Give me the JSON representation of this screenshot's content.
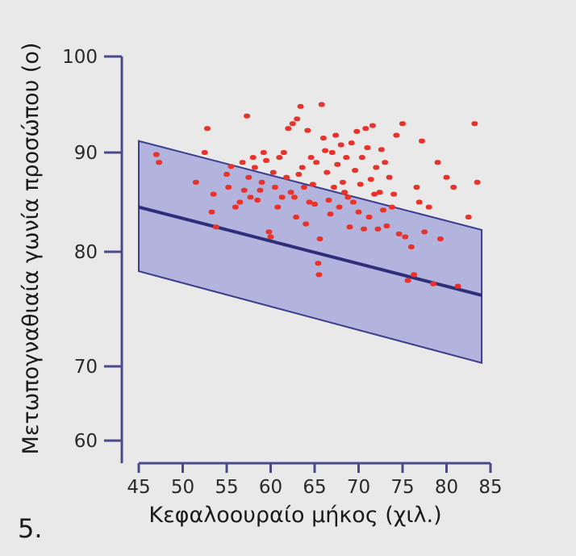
{
  "figure_label": "5.",
  "chart_data": {
    "type": "scatter",
    "xlabel": "Κεφαλοουραίο μήκος (χιλ.)",
    "ylabel": "Μετωπογναθιαία γωνία προσώπου (ο)",
    "xlim": [
      45,
      85
    ],
    "ylim": [
      60,
      100
    ],
    "x_ticks": [
      45,
      50,
      55,
      60,
      65,
      70,
      75,
      80,
      85
    ],
    "y_ticks": [
      60,
      70,
      80,
      90,
      100
    ],
    "grid": false,
    "colors": {
      "points": "#e8322a",
      "band_fill": "#a9aadc",
      "band_edge": "#3a3d8c",
      "mean_line": "#2d2f7a",
      "axis": "#4a4a8a"
    },
    "reference": {
      "x": [
        45,
        84
      ],
      "mean": [
        84.5,
        76.2
      ],
      "upper": [
        91.2,
        82.2
      ],
      "lower": [
        78.3,
        70.3
      ]
    },
    "points": [
      [
        47.0,
        89.8
      ],
      [
        47.3,
        89.0
      ],
      [
        51.5,
        87.0
      ],
      [
        52.5,
        90.0
      ],
      [
        52.8,
        92.5
      ],
      [
        53.3,
        84.0
      ],
      [
        53.5,
        85.8
      ],
      [
        53.8,
        82.5
      ],
      [
        55.0,
        87.8
      ],
      [
        55.2,
        86.5
      ],
      [
        55.5,
        88.6
      ],
      [
        56.0,
        84.5
      ],
      [
        56.5,
        85.0
      ],
      [
        56.8,
        89.0
      ],
      [
        57.0,
        86.2
      ],
      [
        57.3,
        93.8
      ],
      [
        57.5,
        87.5
      ],
      [
        57.7,
        85.5
      ],
      [
        58.0,
        89.5
      ],
      [
        58.2,
        88.5
      ],
      [
        58.5,
        85.2
      ],
      [
        58.8,
        86.2
      ],
      [
        59.0,
        87.0
      ],
      [
        59.2,
        90.0
      ],
      [
        59.5,
        89.2
      ],
      [
        59.8,
        82.0
      ],
      [
        60.0,
        81.5
      ],
      [
        60.3,
        88.0
      ],
      [
        60.5,
        86.5
      ],
      [
        60.8,
        84.5
      ],
      [
        61.0,
        89.5
      ],
      [
        61.3,
        85.5
      ],
      [
        61.5,
        90.0
      ],
      [
        61.8,
        87.5
      ],
      [
        62.0,
        92.5
      ],
      [
        62.3,
        86.0
      ],
      [
        62.5,
        93.0
      ],
      [
        62.7,
        85.5
      ],
      [
        62.9,
        83.5
      ],
      [
        63.0,
        93.5
      ],
      [
        63.2,
        87.8
      ],
      [
        63.4,
        94.8
      ],
      [
        63.6,
        88.5
      ],
      [
        63.8,
        86.5
      ],
      [
        64.0,
        82.8
      ],
      [
        64.2,
        92.3
      ],
      [
        64.4,
        85.0
      ],
      [
        64.6,
        89.5
      ],
      [
        64.8,
        86.8
      ],
      [
        65.0,
        84.8
      ],
      [
        65.2,
        89.0
      ],
      [
        65.4,
        79.0
      ],
      [
        65.5,
        78.0
      ],
      [
        65.6,
        81.3
      ],
      [
        65.8,
        95.0
      ],
      [
        66.0,
        91.5
      ],
      [
        66.2,
        90.2
      ],
      [
        66.4,
        88.0
      ],
      [
        66.6,
        85.2
      ],
      [
        66.8,
        83.8
      ],
      [
        67.0,
        90.0
      ],
      [
        67.2,
        86.5
      ],
      [
        67.4,
        91.8
      ],
      [
        67.6,
        88.8
      ],
      [
        67.8,
        84.5
      ],
      [
        68.0,
        90.8
      ],
      [
        68.2,
        87.0
      ],
      [
        68.4,
        86.0
      ],
      [
        68.6,
        89.5
      ],
      [
        68.8,
        85.5
      ],
      [
        69.0,
        82.5
      ],
      [
        69.2,
        91.0
      ],
      [
        69.4,
        85.0
      ],
      [
        69.6,
        88.2
      ],
      [
        69.8,
        92.2
      ],
      [
        70.0,
        84.0
      ],
      [
        70.2,
        86.8
      ],
      [
        70.4,
        89.5
      ],
      [
        70.6,
        82.3
      ],
      [
        70.8,
        92.5
      ],
      [
        71.0,
        90.5
      ],
      [
        71.2,
        83.5
      ],
      [
        71.4,
        87.3
      ],
      [
        71.6,
        92.8
      ],
      [
        71.8,
        85.8
      ],
      [
        72.0,
        88.5
      ],
      [
        72.2,
        82.3
      ],
      [
        72.4,
        86.0
      ],
      [
        72.6,
        90.3
      ],
      [
        72.8,
        84.2
      ],
      [
        73.0,
        89.0
      ],
      [
        73.2,
        82.6
      ],
      [
        73.5,
        87.5
      ],
      [
        73.8,
        84.5
      ],
      [
        74.0,
        85.8
      ],
      [
        74.3,
        91.8
      ],
      [
        74.6,
        81.8
      ],
      [
        75.0,
        93.0
      ],
      [
        75.3,
        81.5
      ],
      [
        75.6,
        77.5
      ],
      [
        76.0,
        80.5
      ],
      [
        76.3,
        78.0
      ],
      [
        76.6,
        86.5
      ],
      [
        76.9,
        85.0
      ],
      [
        77.2,
        91.2
      ],
      [
        77.5,
        82.0
      ],
      [
        78.0,
        84.5
      ],
      [
        78.5,
        77.2
      ],
      [
        79.0,
        89.0
      ],
      [
        79.3,
        81.3
      ],
      [
        80.0,
        87.5
      ],
      [
        80.8,
        86.5
      ],
      [
        81.3,
        77.0
      ],
      [
        82.5,
        83.5
      ],
      [
        83.2,
        93.0
      ],
      [
        83.5,
        87.0
      ]
    ]
  }
}
